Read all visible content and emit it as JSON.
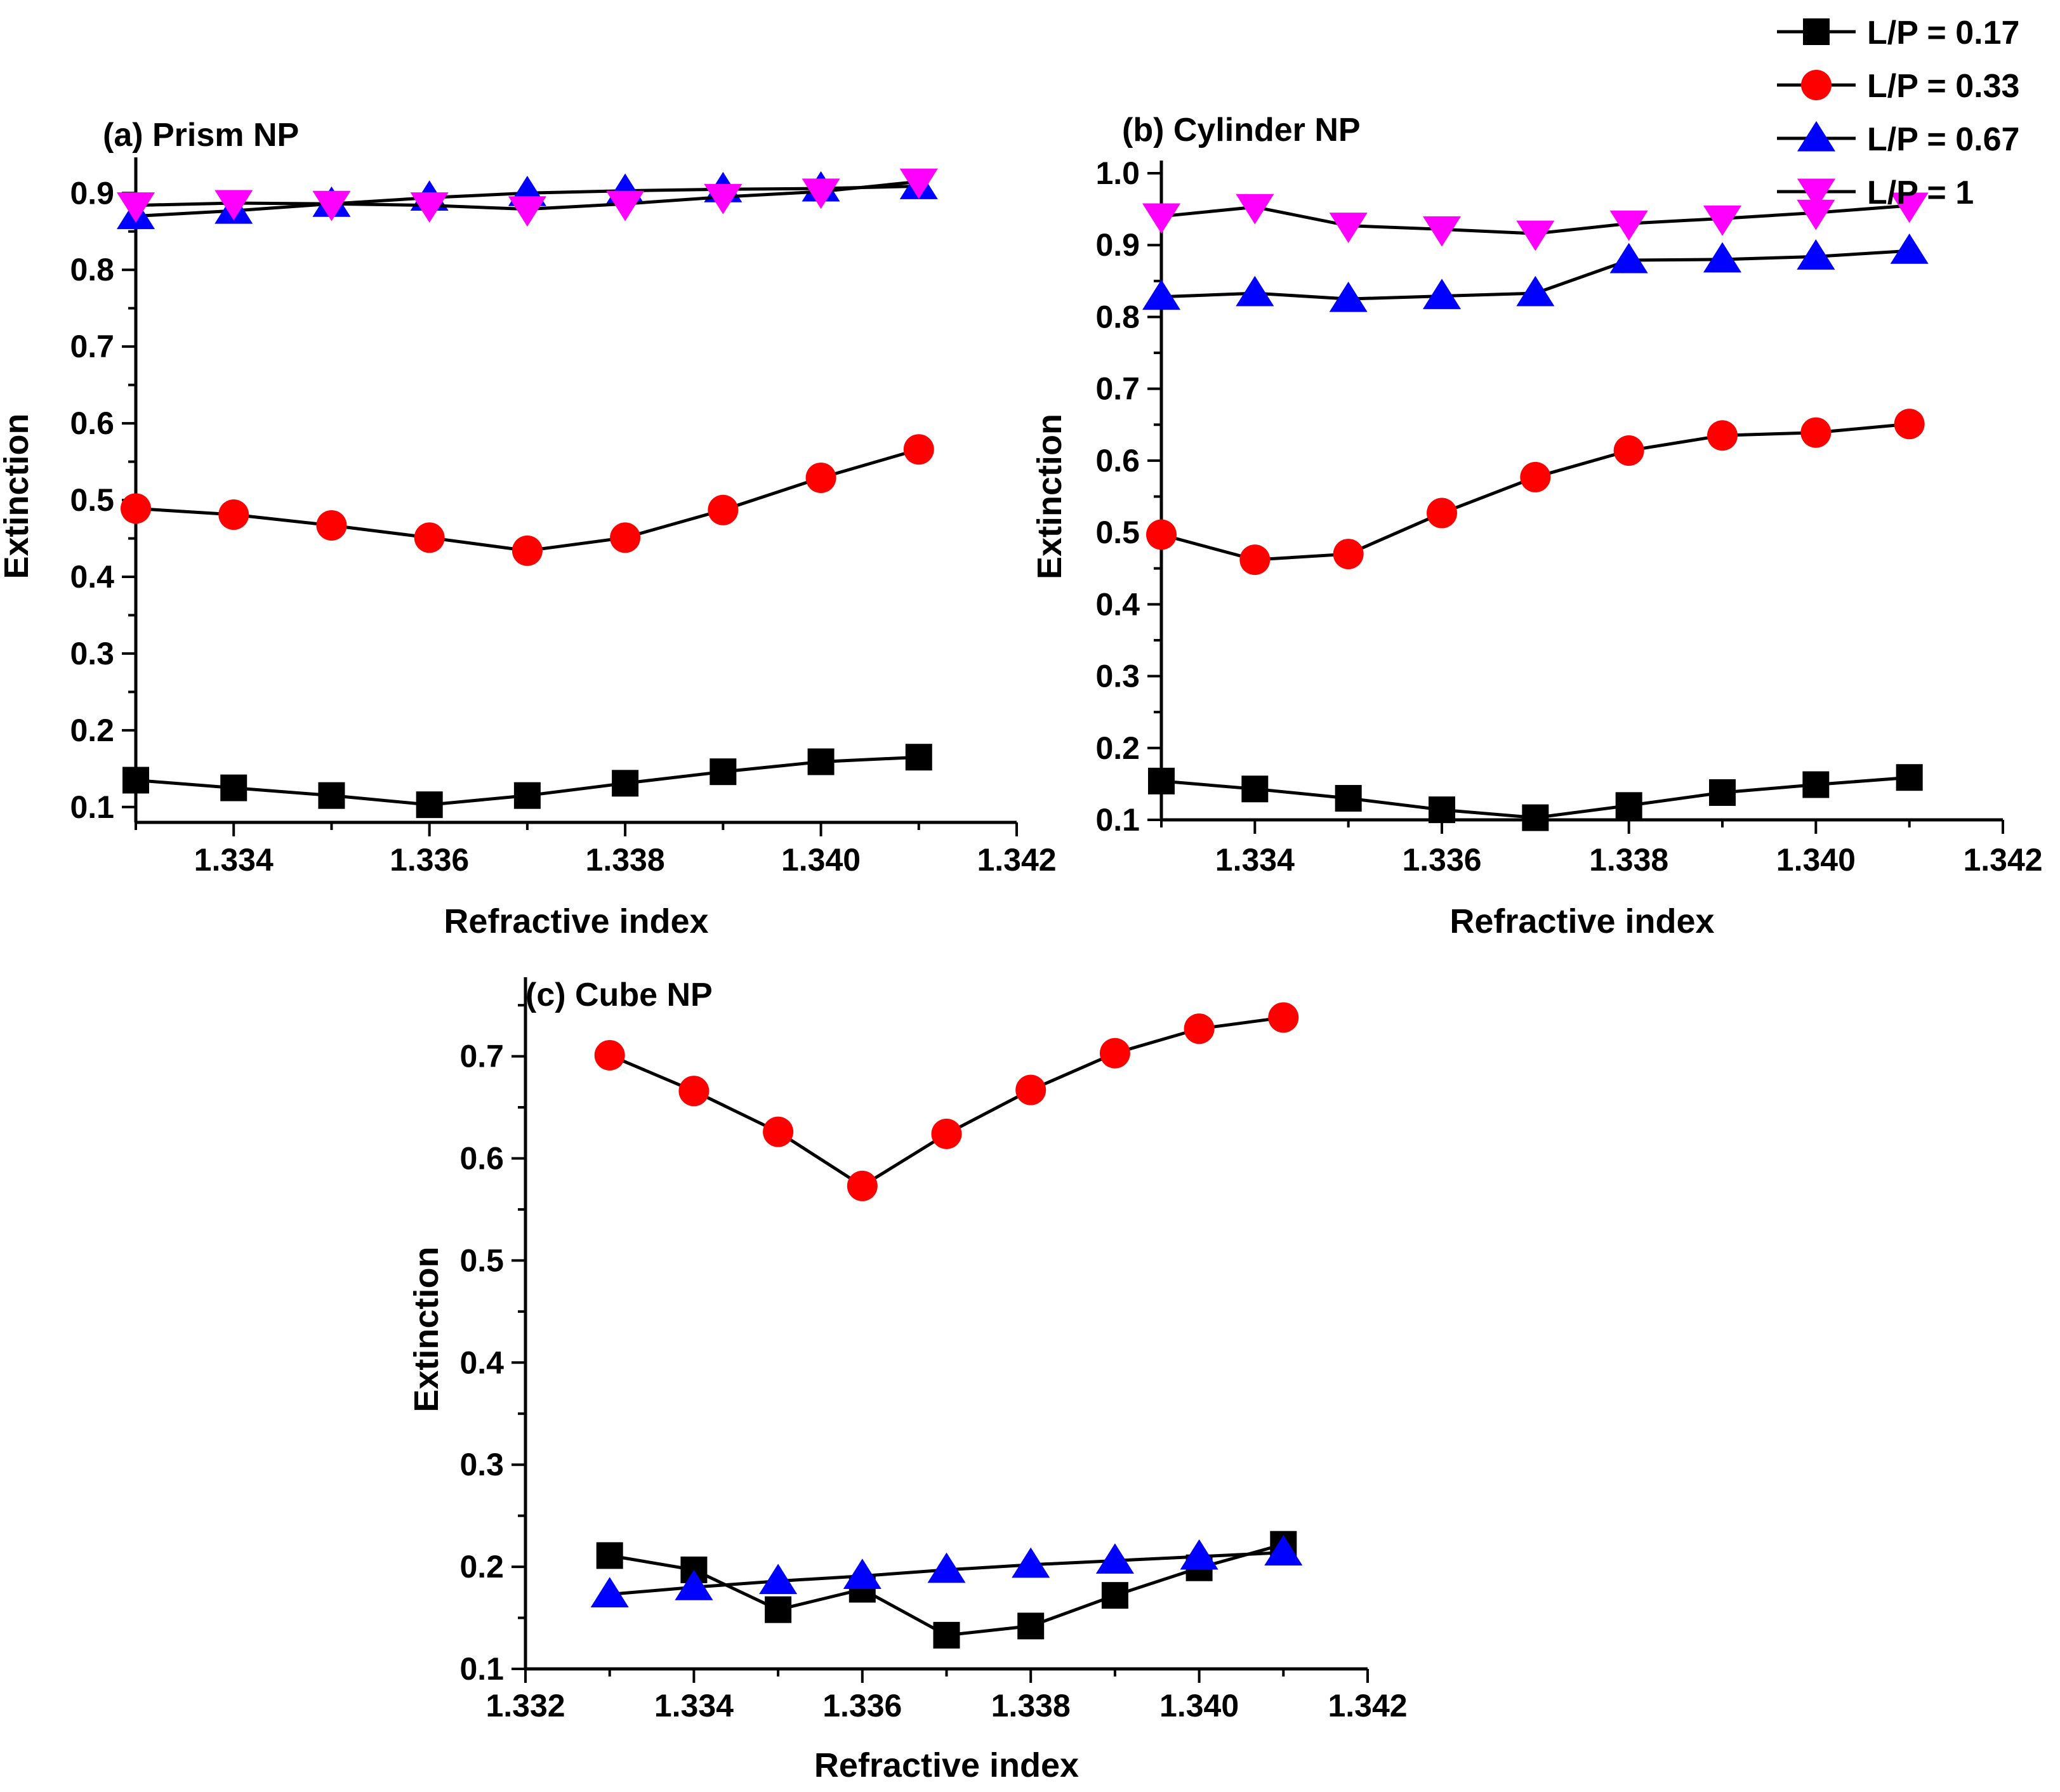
{
  "legend": [
    {
      "label": "L/P = 0.17",
      "marker": "square",
      "color": "#000000"
    },
    {
      "label": "L/P = 0.33",
      "marker": "circle",
      "color": "#ff0000"
    },
    {
      "label": "L/P = 0.67",
      "marker": "triangle-up",
      "color": "#0000ff"
    },
    {
      "label": "L/P = 1",
      "marker": "triangle-down",
      "color": "#ff00ff"
    }
  ],
  "chart_data": [
    {
      "type": "line",
      "title": "(a)  Prism NP",
      "xlabel": "Refractive index",
      "ylabel": "Extinction",
      "xlim": [
        1.333,
        1.342
      ],
      "ylim": [
        0.08,
        0.93
      ],
      "xticks": [
        1.334,
        1.336,
        1.338,
        1.34,
        1.342
      ],
      "xtick_labels": [
        "1.334",
        "1.336",
        "1.338",
        "1.340",
        "1.342"
      ],
      "yticks": [
        0.1,
        0.2,
        0.3,
        0.4,
        0.5,
        0.6,
        0.7,
        0.8,
        0.9
      ],
      "ytick_labels": [
        "0.1",
        "0.2",
        "0.3",
        "0.4",
        "0.5",
        "0.6",
        "0.7",
        "0.8",
        "0.9"
      ],
      "x": [
        1.333,
        1.334,
        1.335,
        1.336,
        1.337,
        1.338,
        1.339,
        1.34,
        1.341
      ],
      "series": [
        {
          "name": "L/P = 0.17",
          "values": [
            0.135,
            0.125,
            0.115,
            0.103,
            0.115,
            0.131,
            0.146,
            0.159,
            0.165
          ]
        },
        {
          "name": "L/P = 0.33",
          "values": [
            0.489,
            0.481,
            0.467,
            0.451,
            0.434,
            0.451,
            0.487,
            0.529,
            0.566
          ]
        },
        {
          "name": "L/P = 0.67",
          "values": [
            0.87,
            0.877,
            0.886,
            0.894,
            0.9,
            0.903,
            0.905,
            0.906,
            0.909
          ]
        },
        {
          "name": "L/P = 1",
          "values": [
            0.884,
            0.887,
            0.886,
            0.884,
            0.879,
            0.886,
            0.895,
            0.902,
            0.915
          ]
        }
      ]
    },
    {
      "type": "line",
      "title": "(b)  Cylinder NP",
      "xlabel": "Refractive index",
      "ylabel": "Extinction",
      "xlim": [
        1.333,
        1.342
      ],
      "ylim": [
        0.1,
        1.0
      ],
      "xticks": [
        1.334,
        1.336,
        1.338,
        1.34,
        1.342
      ],
      "xtick_labels": [
        "1.334",
        "1.336",
        "1.338",
        "1.340",
        "1.342"
      ],
      "yticks": [
        0.1,
        0.2,
        0.3,
        0.4,
        0.5,
        0.6,
        0.7,
        0.8,
        0.9,
        1.0
      ],
      "ytick_labels": [
        "0.1",
        "0.2",
        "0.3",
        "0.4",
        "0.5",
        "0.6",
        "0.7",
        "0.8",
        "0.9",
        "1.0"
      ],
      "x": [
        1.333,
        1.334,
        1.335,
        1.336,
        1.337,
        1.338,
        1.339,
        1.34,
        1.341
      ],
      "series": [
        {
          "name": "L/P = 0.17",
          "values": [
            0.154,
            0.143,
            0.13,
            0.114,
            0.103,
            0.12,
            0.138,
            0.149,
            0.159
          ]
        },
        {
          "name": "L/P = 0.33",
          "values": [
            0.497,
            0.462,
            0.47,
            0.527,
            0.577,
            0.614,
            0.635,
            0.639,
            0.651
          ]
        },
        {
          "name": "L/P = 0.67",
          "values": [
            0.828,
            0.833,
            0.825,
            0.829,
            0.833,
            0.879,
            0.88,
            0.884,
            0.892
          ]
        },
        {
          "name": "L/P = 1",
          "values": [
            0.94,
            0.953,
            0.927,
            0.922,
            0.916,
            0.93,
            0.937,
            0.945,
            0.955
          ]
        }
      ]
    },
    {
      "type": "line",
      "title": "(c)  Cube NP",
      "xlabel": "Refractive index",
      "ylabel": "Extinction",
      "xlim": [
        1.332,
        1.342
      ],
      "ylim": [
        0.1,
        0.765
      ],
      "xticks": [
        1.332,
        1.334,
        1.336,
        1.338,
        1.34,
        1.342
      ],
      "xtick_labels": [
        "1.332",
        "1.334",
        "1.336",
        "1.338",
        "1.340",
        "1.342"
      ],
      "yticks": [
        0.1,
        0.2,
        0.3,
        0.4,
        0.5,
        0.6,
        0.7
      ],
      "ytick_labels": [
        "0.1",
        "0.2",
        "0.3",
        "0.4",
        "0.5",
        "0.6",
        "0.7"
      ],
      "x": [
        1.333,
        1.334,
        1.335,
        1.336,
        1.337,
        1.338,
        1.339,
        1.34,
        1.341
      ],
      "series": [
        {
          "name": "L/P = 0.17",
          "values": [
            0.211,
            0.197,
            0.158,
            0.178,
            0.133,
            0.142,
            0.172,
            0.199,
            0.222
          ]
        },
        {
          "name": "L/P = 0.33",
          "values": [
            0.701,
            0.666,
            0.626,
            0.573,
            0.624,
            0.667,
            0.703,
            0.727,
            0.738
          ]
        },
        {
          "name": "L/P = 0.67",
          "values": [
            0.173,
            0.18,
            0.186,
            0.191,
            0.197,
            0.202,
            0.206,
            0.21,
            0.214
          ]
        }
      ]
    }
  ]
}
